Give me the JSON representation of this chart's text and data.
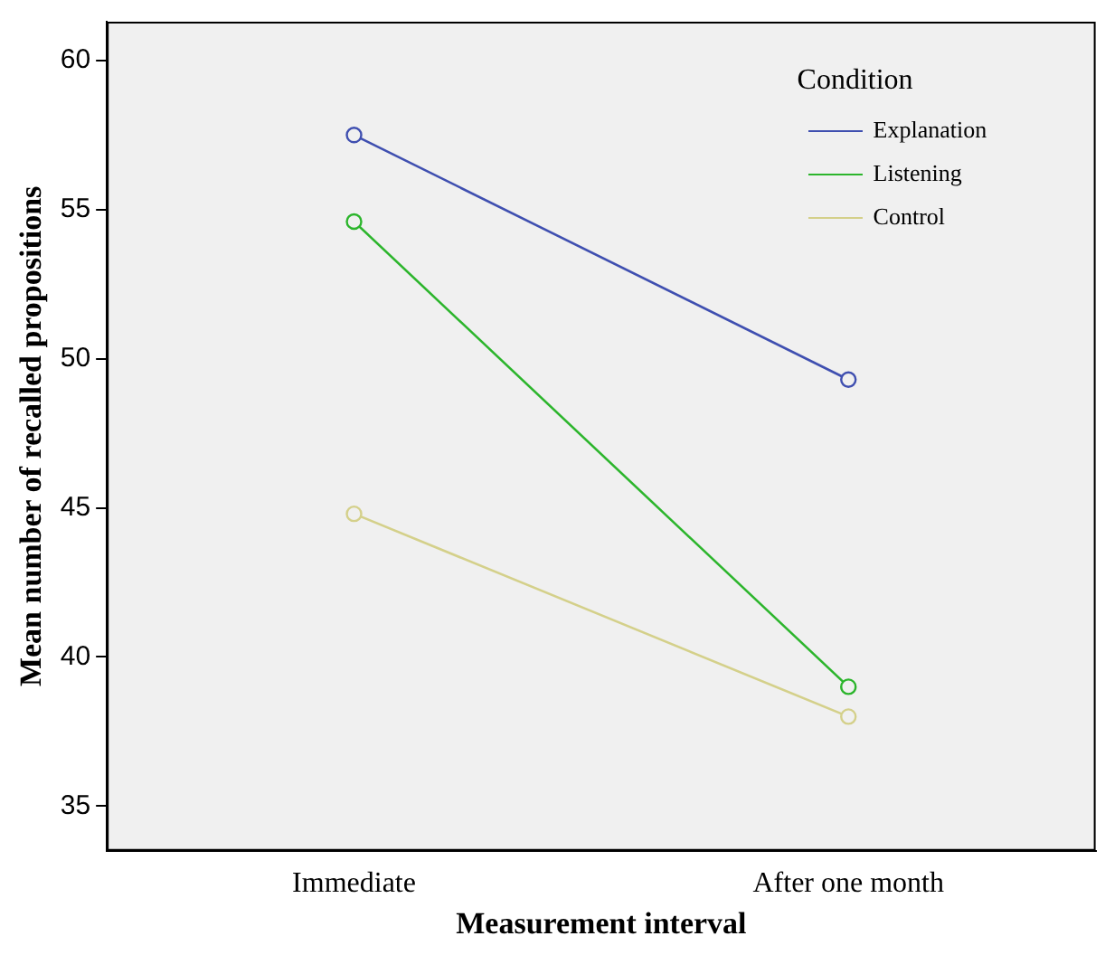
{
  "chart_data": {
    "type": "line",
    "xlabel": "Measurement interval",
    "ylabel": "Mean number of recalled propositions",
    "legend_title": "Condition",
    "categories": [
      "Immediate",
      "After one month"
    ],
    "series": [
      {
        "name": "Explanation",
        "color": "#3f4fb0",
        "values": [
          57.5,
          49.3
        ]
      },
      {
        "name": "Listening",
        "color": "#2cb52c",
        "values": [
          54.6,
          39.0
        ]
      },
      {
        "name": "Control",
        "color": "#d4d08a",
        "values": [
          44.8,
          38.0
        ]
      }
    ],
    "ylim": [
      33.5,
      61.3
    ],
    "yticks": [
      35,
      40,
      45,
      50,
      55,
      60
    ],
    "grid": false,
    "legend": "top right",
    "marker": "circle",
    "line_style": "solid"
  }
}
